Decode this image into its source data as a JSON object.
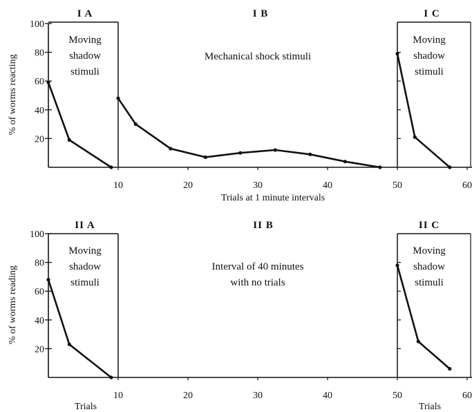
{
  "chart_data": [
    {
      "type": "line",
      "xlabel": "Trials at 1 minute intervals",
      "ylabel": "% of worms reacting",
      "xlim": [
        0,
        60
      ],
      "ylim": [
        0,
        100
      ],
      "xticks": [
        "10",
        "20",
        "30",
        "40",
        "50",
        "60"
      ],
      "yticks": [
        "20",
        "40",
        "60",
        "80",
        "100"
      ],
      "panels": [
        {
          "title": "I A",
          "annotation": [
            "Moving",
            "shadow",
            "stimuli"
          ],
          "boxed": true,
          "x": [
            0,
            3,
            9
          ],
          "y": [
            59,
            19,
            0
          ]
        },
        {
          "title": "I B",
          "annotation": [
            "Mechanical shock stimuli"
          ],
          "boxed": false,
          "x": [
            10,
            12.5,
            17.5,
            22.5,
            27.5,
            32.5,
            37.5,
            42.5,
            47.5
          ],
          "y": [
            48,
            30,
            13,
            7,
            10,
            12,
            9,
            4,
            0
          ]
        },
        {
          "title": "I C",
          "annotation": [
            "Moving",
            "shadow",
            "stimuli"
          ],
          "boxed": true,
          "x": [
            50,
            52.5,
            57.5
          ],
          "y": [
            79,
            21,
            0
          ]
        }
      ]
    },
    {
      "type": "line",
      "xlabel": "Trials",
      "xlabel_right": "Trials",
      "ylabel": "% of worms reading",
      "xlim": [
        0,
        60
      ],
      "ylim": [
        0,
        100
      ],
      "xticks": [
        "10",
        "20",
        "30",
        "40",
        "50",
        "60"
      ],
      "yticks": [
        "20",
        "40",
        "60",
        "80",
        "100"
      ],
      "panels": [
        {
          "title": "II A",
          "annotation": [
            "Moving",
            "shadow",
            "stimuli"
          ],
          "boxed": true,
          "x": [
            0,
            3,
            9
          ],
          "y": [
            68,
            23,
            0
          ]
        },
        {
          "title": "II B",
          "annotation": [
            "Interval of 40 minutes",
            "with no trials"
          ],
          "boxed": false,
          "x": [],
          "y": []
        },
        {
          "title": "II C",
          "annotation": [
            "Moving",
            "shadow",
            "stimuli"
          ],
          "boxed": true,
          "x": [
            50,
            53,
            57.5
          ],
          "y": [
            78,
            25,
            6
          ]
        }
      ]
    }
  ]
}
